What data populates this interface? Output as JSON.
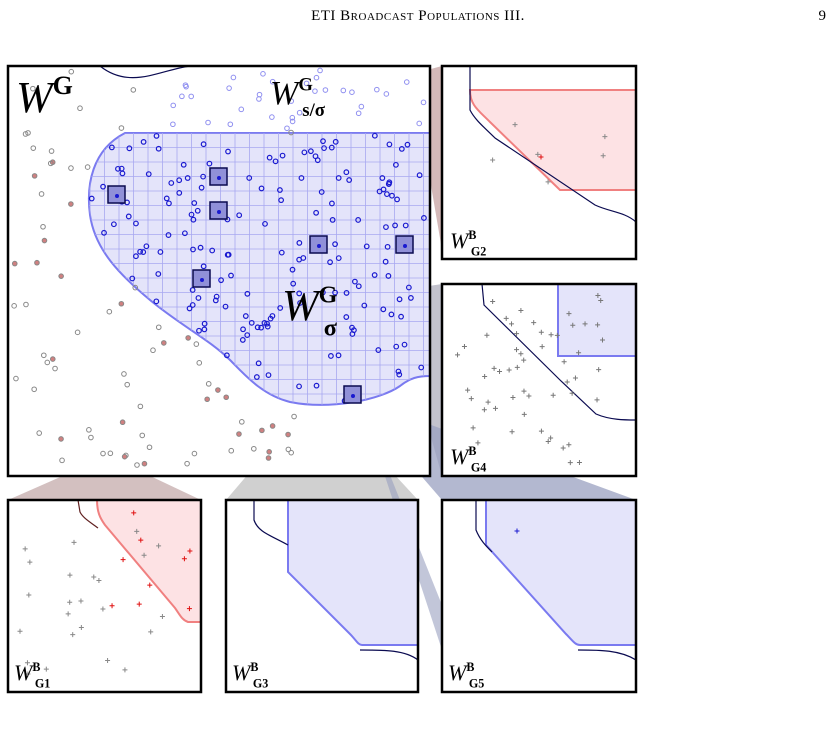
{
  "header": {
    "title": "ETI Broadcast Populations III.",
    "page": "9"
  },
  "figure": {
    "main": {
      "base": "W",
      "sup": "G"
    },
    "regions": [
      {
        "base": "W",
        "sup": "G",
        "sub": "s/σ"
      },
      {
        "base": "W",
        "sup": "G",
        "sub": "σ"
      }
    ],
    "insets": [
      {
        "base": "W",
        "sup": "B",
        "sub": "G2"
      },
      {
        "base": "W",
        "sup": "B",
        "sub": "G4"
      },
      {
        "base": "W",
        "sup": "B",
        "sub": "G1"
      },
      {
        "base": "W",
        "sup": "B",
        "sub": "G3"
      },
      {
        "base": "W",
        "sup": "B",
        "sub": "G5"
      }
    ]
  }
}
